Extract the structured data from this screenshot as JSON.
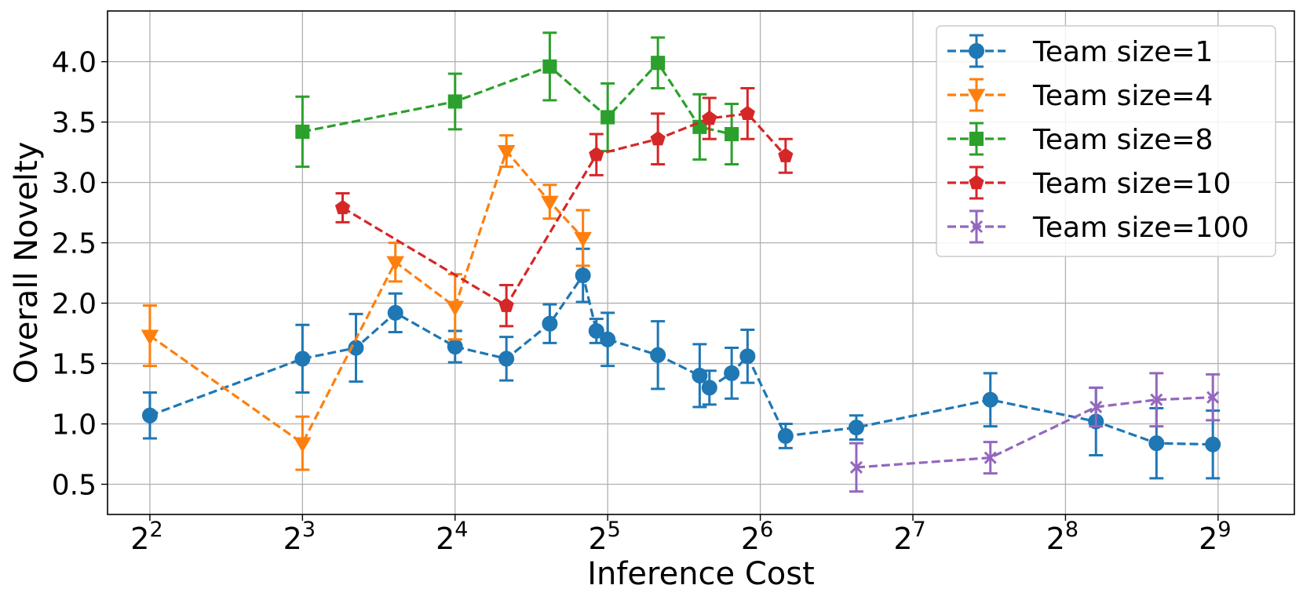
{
  "chart_data": {
    "type": "line",
    "title": "",
    "xlabel": "Inference Cost",
    "ylabel": "Overall Novelty",
    "xscale": "log2",
    "xlim": [
      3.3,
      724
    ],
    "ylim": [
      0.25,
      4.42
    ],
    "x_ticks": [
      {
        "value": 4,
        "base": "2",
        "exp": "2"
      },
      {
        "value": 8,
        "base": "2",
        "exp": "3"
      },
      {
        "value": 16,
        "base": "2",
        "exp": "4"
      },
      {
        "value": 32,
        "base": "2",
        "exp": "5"
      },
      {
        "value": 64,
        "base": "2",
        "exp": "6"
      },
      {
        "value": 128,
        "base": "2",
        "exp": "7"
      },
      {
        "value": 256,
        "base": "2",
        "exp": "8"
      },
      {
        "value": 512,
        "base": "2",
        "exp": "9"
      }
    ],
    "y_ticks": [
      "0.5",
      "1.0",
      "1.5",
      "2.0",
      "2.5",
      "3.0",
      "3.5",
      "4.0"
    ],
    "grid": true,
    "legend_position": "top-right",
    "series": [
      {
        "name": "Team size=1",
        "color": "#1f77b4",
        "marker": "circle",
        "points": [
          {
            "x": 4.0,
            "y": 1.07,
            "err": 0.19
          },
          {
            "x": 8.0,
            "y": 1.54,
            "err": 0.28
          },
          {
            "x": 10.2,
            "y": 1.63,
            "err": 0.28
          },
          {
            "x": 12.2,
            "y": 1.92,
            "err": 0.16
          },
          {
            "x": 16.0,
            "y": 1.64,
            "err": 0.13
          },
          {
            "x": 20.2,
            "y": 1.54,
            "err": 0.18
          },
          {
            "x": 24.6,
            "y": 1.83,
            "err": 0.16
          },
          {
            "x": 28.6,
            "y": 2.23,
            "err": 0.22
          },
          {
            "x": 30.4,
            "y": 1.77,
            "err": 0.1
          },
          {
            "x": 32.0,
            "y": 1.7,
            "err": 0.22
          },
          {
            "x": 40.2,
            "y": 1.57,
            "err": 0.28
          },
          {
            "x": 48.6,
            "y": 1.4,
            "err": 0.26
          },
          {
            "x": 50.8,
            "y": 1.3,
            "err": 0.14
          },
          {
            "x": 56.2,
            "y": 1.42,
            "err": 0.21
          },
          {
            "x": 60.4,
            "y": 1.56,
            "err": 0.22
          },
          {
            "x": 71.8,
            "y": 0.9,
            "err": 0.1
          },
          {
            "x": 99.0,
            "y": 0.97,
            "err": 0.1
          },
          {
            "x": 182.0,
            "y": 1.2,
            "err": 0.22
          },
          {
            "x": 294.0,
            "y": 1.02,
            "err": 0.28
          },
          {
            "x": 387.0,
            "y": 0.84,
            "err": 0.29
          },
          {
            "x": 500.0,
            "y": 0.83,
            "err": 0.28
          }
        ]
      },
      {
        "name": "Team size=4",
        "color": "#ff7f0e",
        "marker": "triangle-down",
        "points": [
          {
            "x": 4.0,
            "y": 1.73,
            "err": 0.25
          },
          {
            "x": 8.0,
            "y": 0.84,
            "err": 0.22
          },
          {
            "x": 12.2,
            "y": 2.34,
            "err": 0.16
          },
          {
            "x": 16.0,
            "y": 1.97,
            "err": 0.27
          },
          {
            "x": 20.2,
            "y": 3.26,
            "err": 0.13
          },
          {
            "x": 24.6,
            "y": 2.84,
            "err": 0.14
          },
          {
            "x": 28.6,
            "y": 2.54,
            "err": 0.23
          }
        ]
      },
      {
        "name": "Team size=8",
        "color": "#2ca02c",
        "marker": "square",
        "points": [
          {
            "x": 8.0,
            "y": 3.42,
            "err": 0.29
          },
          {
            "x": 16.0,
            "y": 3.67,
            "err": 0.23
          },
          {
            "x": 24.6,
            "y": 3.96,
            "err": 0.28
          },
          {
            "x": 32.0,
            "y": 3.54,
            "err": 0.28
          },
          {
            "x": 40.2,
            "y": 3.99,
            "err": 0.21
          },
          {
            "x": 48.6,
            "y": 3.46,
            "err": 0.27
          },
          {
            "x": 56.2,
            "y": 3.4,
            "err": 0.25
          }
        ]
      },
      {
        "name": "Team size=10",
        "color": "#d62728",
        "marker": "pentagon",
        "points": [
          {
            "x": 9.6,
            "y": 2.79,
            "err": 0.12
          },
          {
            "x": 20.2,
            "y": 1.98,
            "err": 0.17
          },
          {
            "x": 30.4,
            "y": 3.23,
            "err": 0.17
          },
          {
            "x": 40.2,
            "y": 3.36,
            "err": 0.21
          },
          {
            "x": 50.8,
            "y": 3.53,
            "err": 0.17
          },
          {
            "x": 60.4,
            "y": 3.57,
            "err": 0.21
          },
          {
            "x": 71.8,
            "y": 3.22,
            "err": 0.14
          }
        ]
      },
      {
        "name": "Team size=100",
        "color": "#9467bd",
        "marker": "x",
        "points": [
          {
            "x": 99.0,
            "y": 0.64,
            "err": 0.2
          },
          {
            "x": 182.0,
            "y": 0.72,
            "err": 0.13
          },
          {
            "x": 294.0,
            "y": 1.14,
            "err": 0.16
          },
          {
            "x": 387.0,
            "y": 1.2,
            "err": 0.22
          },
          {
            "x": 500.0,
            "y": 1.22,
            "err": 0.19
          }
        ]
      }
    ]
  }
}
